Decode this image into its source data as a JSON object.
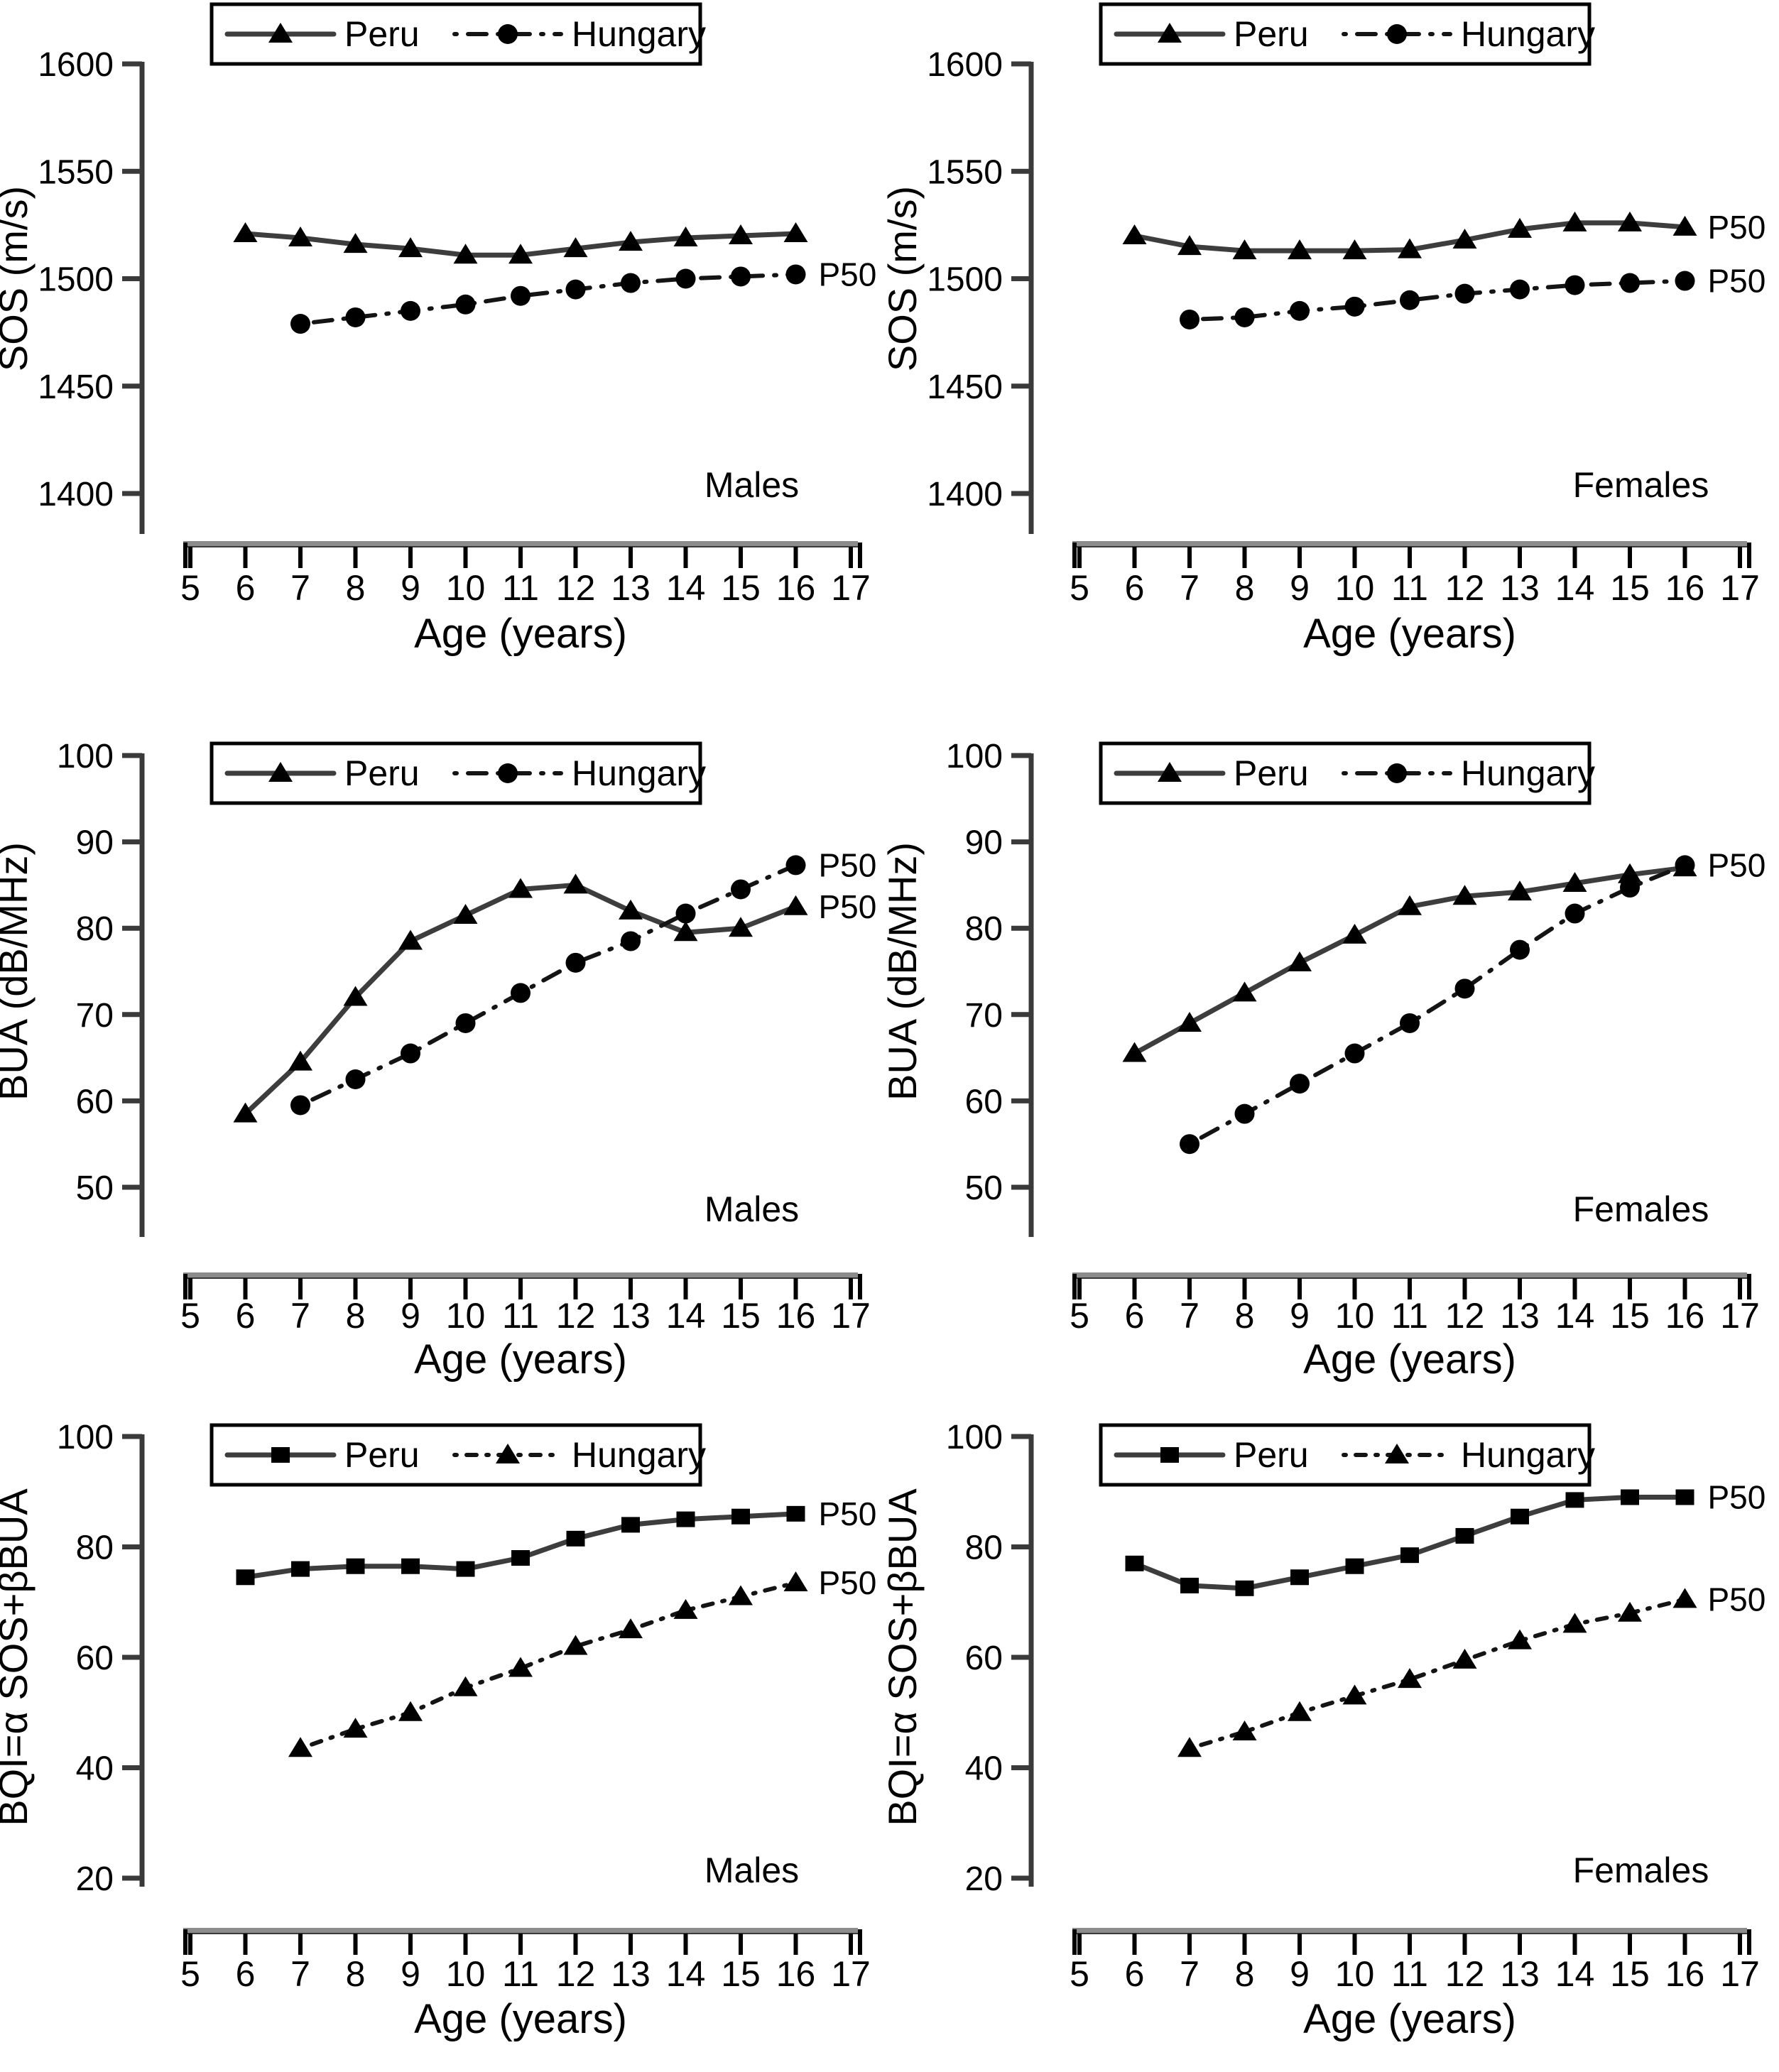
{
  "figure": {
    "background": "#ffffff",
    "text_color": "#000000",
    "peru_line_color": "#3d3d3d",
    "hungary_line_color": "#141414",
    "marker_color": "#000000",
    "axis_color": "#3a3a3a",
    "xbar_color": "#8c8c8c",
    "legend_border_color": "#000000"
  },
  "chart_data": [
    {
      "id": "sos-males",
      "type": "line",
      "ylabel": "SOS (m/s)",
      "xlabel": "Age (years)",
      "group_label": "Males",
      "ylim": [
        1400,
        1600
      ],
      "yticks": [
        1600,
        1550,
        1500,
        1450,
        1400
      ],
      "xticks": [
        5,
        6,
        7,
        8,
        9,
        10,
        11,
        12,
        13,
        14,
        15,
        16,
        17
      ],
      "legend_position": "top",
      "grid": false,
      "series": [
        {
          "name": "Peru",
          "marker": "triangle",
          "line": "solid",
          "x": [
            6,
            7,
            8,
            9,
            10,
            11,
            12,
            13,
            14,
            15,
            16
          ],
          "values": [
            1521,
            1519,
            1516,
            1514,
            1511,
            1511,
            1514,
            1517,
            1519,
            1520,
            1521
          ],
          "p50_label": null
        },
        {
          "name": "Hungary",
          "marker": "circle",
          "line": "dashdot",
          "x": [
            7,
            8,
            9,
            10,
            11,
            12,
            13,
            14,
            15,
            16
          ],
          "values": [
            1479,
            1482,
            1485,
            1488,
            1492,
            1495,
            1498,
            1500,
            1501,
            1502
          ],
          "p50_label": "P50"
        }
      ]
    },
    {
      "id": "sos-females",
      "type": "line",
      "ylabel": "SOS (m/s)",
      "xlabel": "Age (years)",
      "group_label": "Females",
      "ylim": [
        1400,
        1600
      ],
      "yticks": [
        1600,
        1550,
        1500,
        1450,
        1400
      ],
      "xticks": [
        5,
        6,
        7,
        8,
        9,
        10,
        11,
        12,
        13,
        14,
        15,
        16,
        17
      ],
      "legend_position": "top",
      "grid": false,
      "series": [
        {
          "name": "Peru",
          "marker": "triangle",
          "line": "solid",
          "x": [
            6,
            7,
            8,
            9,
            10,
            11,
            12,
            13,
            14,
            15,
            16
          ],
          "values": [
            1520,
            1515,
            1513,
            1513,
            1513,
            1513.5,
            1518,
            1523,
            1526,
            1526,
            1524
          ],
          "p50_label": "P50"
        },
        {
          "name": "Hungary",
          "marker": "circle",
          "line": "dashdot",
          "x": [
            7,
            8,
            9,
            10,
            11,
            12,
            13,
            14,
            15,
            16
          ],
          "values": [
            1481,
            1482,
            1485,
            1487,
            1490,
            1493,
            1495,
            1497,
            1498,
            1499
          ],
          "p50_label": "P50"
        }
      ]
    },
    {
      "id": "bua-males",
      "type": "line",
      "ylabel": "BUA (dB/MHz)",
      "xlabel": "Age (years)",
      "group_label": "Males",
      "ylim": [
        50,
        100
      ],
      "yticks": [
        100,
        90,
        80,
        70,
        60,
        50
      ],
      "xticks": [
        5,
        6,
        7,
        8,
        9,
        10,
        11,
        12,
        13,
        14,
        15,
        16,
        17
      ],
      "legend_position": "top",
      "grid": false,
      "series": [
        {
          "name": "Peru",
          "marker": "triangle",
          "line": "solid",
          "x": [
            6,
            7,
            8,
            9,
            10,
            11,
            12,
            13,
            14,
            15,
            16
          ],
          "values": [
            58.5,
            64.5,
            72,
            78.5,
            81.5,
            84.5,
            85,
            82,
            79.5,
            80,
            82.5
          ],
          "p50_label": "P50"
        },
        {
          "name": "Hungary",
          "marker": "circle",
          "line": "dashdot",
          "x": [
            7,
            8,
            9,
            10,
            11,
            12,
            13,
            14,
            15,
            16
          ],
          "values": [
            59.5,
            62.5,
            65.5,
            69,
            72.5,
            76,
            78.5,
            81.7,
            84.5,
            87.3
          ],
          "p50_label": "P50"
        }
      ]
    },
    {
      "id": "bua-females",
      "type": "line",
      "ylabel": "BUA (dB/MHz)",
      "xlabel": "Age (years)",
      "group_label": "Females",
      "ylim": [
        50,
        100
      ],
      "yticks": [
        100,
        90,
        80,
        70,
        60,
        50
      ],
      "xticks": [
        5,
        6,
        7,
        8,
        9,
        10,
        11,
        12,
        13,
        14,
        15,
        16,
        17
      ],
      "legend_position": "top",
      "grid": false,
      "series": [
        {
          "name": "Peru",
          "marker": "triangle",
          "line": "solid",
          "x": [
            6,
            7,
            8,
            9,
            10,
            11,
            12,
            13,
            14,
            15,
            16
          ],
          "values": [
            65.5,
            69,
            72.5,
            76,
            79.2,
            82.5,
            83.7,
            84.2,
            85.2,
            86.2,
            87
          ],
          "p50_label": null
        },
        {
          "name": "Hungary",
          "marker": "circle",
          "line": "dashdot",
          "x": [
            7,
            8,
            9,
            10,
            11,
            12,
            13,
            14,
            15,
            16
          ],
          "values": [
            55,
            58.5,
            62,
            65.5,
            69,
            73,
            77.5,
            81.7,
            84.7,
            87.3
          ],
          "p50_label": "P50"
        }
      ]
    },
    {
      "id": "bqi-males",
      "type": "line",
      "ylabel": "BQI=α SOS+βBUA",
      "xlabel": "Age (years)",
      "group_label": "Males",
      "ylim": [
        20,
        100
      ],
      "yticks": [
        100,
        80,
        60,
        40,
        20
      ],
      "xticks": [
        5,
        6,
        7,
        8,
        9,
        10,
        11,
        12,
        13,
        14,
        15,
        16,
        17
      ],
      "legend_position": "top",
      "grid": false,
      "series": [
        {
          "name": "Peru",
          "marker": "square",
          "line": "solid",
          "x": [
            6,
            7,
            8,
            9,
            10,
            11,
            12,
            13,
            14,
            15,
            16
          ],
          "values": [
            74.5,
            76,
            76.5,
            76.5,
            76,
            78,
            81.5,
            84,
            85,
            85.5,
            86
          ],
          "p50_label": "P50"
        },
        {
          "name": "Hungary",
          "marker": "triangle",
          "line": "dotted",
          "x": [
            7,
            8,
            9,
            10,
            11,
            12,
            13,
            14,
            15,
            16
          ],
          "values": [
            43.5,
            47,
            50,
            54.5,
            58,
            62,
            65,
            68.5,
            71,
            73.5
          ],
          "p50_label": "P50"
        }
      ]
    },
    {
      "id": "bqi-females",
      "type": "line",
      "ylabel": "BQI=α SOS+βBUA",
      "xlabel": "Age (years)",
      "group_label": "Females",
      "ylim": [
        20,
        100
      ],
      "yticks": [
        100,
        80,
        60,
        40,
        20
      ],
      "xticks": [
        5,
        6,
        7,
        8,
        9,
        10,
        11,
        12,
        13,
        14,
        15,
        16,
        17
      ],
      "legend_position": "top",
      "grid": false,
      "series": [
        {
          "name": "Peru",
          "marker": "square",
          "line": "solid",
          "x": [
            6,
            7,
            8,
            9,
            10,
            11,
            12,
            13,
            14,
            15,
            16
          ],
          "values": [
            77,
            73,
            72.5,
            74.5,
            76.5,
            78.5,
            82,
            85.5,
            88.5,
            89,
            89
          ],
          "p50_label": "P50"
        },
        {
          "name": "Hungary",
          "marker": "triangle",
          "line": "dotted",
          "x": [
            7,
            8,
            9,
            10,
            11,
            12,
            13,
            14,
            15,
            16
          ],
          "values": [
            43.5,
            46.5,
            50,
            53,
            56,
            59.5,
            63,
            66,
            68,
            70.5
          ],
          "p50_label": "P50"
        }
      ]
    }
  ]
}
